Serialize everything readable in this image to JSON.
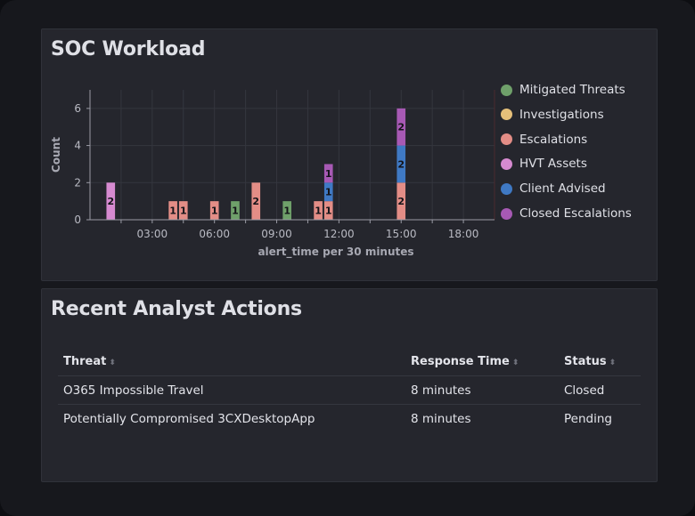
{
  "workload_panel": {
    "title": "SOC Workload"
  },
  "actions_panel": {
    "title": "Recent Analyst Actions",
    "columns": [
      "Threat",
      "Response Time",
      "Status"
    ],
    "rows": [
      [
        "O365 Impossible Travel",
        "8 minutes",
        "Closed"
      ],
      [
        "Potentially Compromised 3CXDesktopApp",
        "8 minutes",
        "Pending"
      ]
    ]
  },
  "chart_data": {
    "type": "bar",
    "stacked": true,
    "xlabel": "alert_time per 30 minutes",
    "ylabel": "Count",
    "x_ticks": [
      "03:00",
      "06:00",
      "09:00",
      "12:00",
      "15:00",
      "18:00"
    ],
    "y_ticks": [
      "0",
      "2",
      "4",
      "6"
    ],
    "ylim": [
      0,
      7
    ],
    "xlim_hours": [
      0.0,
      19.5
    ],
    "grid": true,
    "legend_position": "right",
    "series": [
      {
        "name": "Mitigated Threats",
        "color": "#6fa06a"
      },
      {
        "name": "Investigations",
        "color": "#e6c07a"
      },
      {
        "name": "Escalations",
        "color": "#e38d86"
      },
      {
        "name": "HVT Assets",
        "color": "#d68ad0"
      },
      {
        "name": "Client Advised",
        "color": "#3f79c4"
      },
      {
        "name": "Closed Escalations",
        "color": "#a759b4"
      }
    ],
    "bars": [
      {
        "time": "01:00",
        "series": "HVT Assets",
        "value": 2
      },
      {
        "time": "04:00",
        "series": "Escalations",
        "value": 1
      },
      {
        "time": "04:30",
        "series": "Escalations",
        "value": 1
      },
      {
        "time": "06:00",
        "series": "Escalations",
        "value": 1
      },
      {
        "time": "07:00",
        "series": "Mitigated Threats",
        "value": 1
      },
      {
        "time": "08:00",
        "series": "Escalations",
        "value": 2
      },
      {
        "time": "09:30",
        "series": "Mitigated Threats",
        "value": 1
      },
      {
        "time": "11:00",
        "series": "Escalations",
        "value": 1
      },
      {
        "time": "11:30",
        "series": "Escalations",
        "value": 1
      },
      {
        "time": "11:30",
        "series": "Client Advised",
        "value": 1
      },
      {
        "time": "11:30",
        "series": "Closed Escalations",
        "value": 1
      },
      {
        "time": "15:00",
        "series": "Escalations",
        "value": 2
      },
      {
        "time": "15:00",
        "series": "Client Advised",
        "value": 2
      },
      {
        "time": "15:00",
        "series": "Closed Escalations",
        "value": 2
      }
    ]
  }
}
